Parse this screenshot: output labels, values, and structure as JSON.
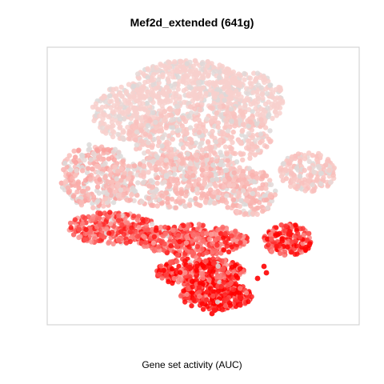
{
  "chart_data": {
    "type": "scatter",
    "title": "Mef2d_extended (641g)",
    "xlabel": "Gene set activity (AUC)",
    "ylabel": "",
    "axes_visible": false,
    "grid": false,
    "legend": "none",
    "colors": {
      "low": "#d9d9d9",
      "mid": "#f8d6d2",
      "high": "#ff0000",
      "frame": "#cccccc"
    },
    "note_scale": "point color encodes AUC from low (grey) to high (red)"
  }
}
